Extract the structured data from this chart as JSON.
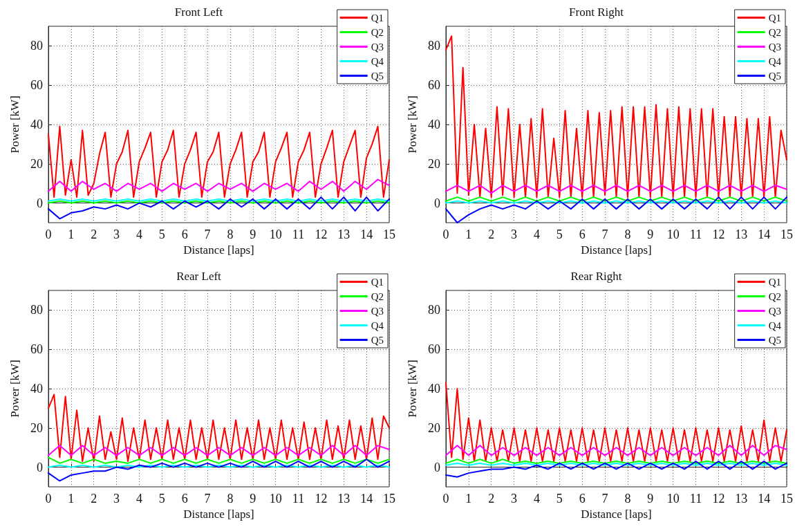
{
  "chart_data": [
    {
      "type": "line",
      "title": "Front Left",
      "xlabel": "Distance [laps]",
      "ylabel": "Power [kW]",
      "xlim": [
        0,
        15
      ],
      "xticks": [
        0,
        1,
        2,
        3,
        4,
        5,
        6,
        7,
        8,
        9,
        10,
        11,
        12,
        13,
        14,
        15
      ],
      "ylim": [
        -10,
        90
      ],
      "yticks": [
        0,
        20,
        40,
        60,
        80
      ],
      "grid": true,
      "legend": "top right",
      "x": [
        0,
        0.25,
        0.5,
        0.75,
        1,
        1.25,
        1.5,
        1.75,
        2,
        2.25,
        2.5,
        2.75,
        3,
        3.25,
        3.5,
        3.75,
        4,
        4.25,
        4.5,
        4.75,
        5,
        5.25,
        5.5,
        5.75,
        6,
        6.25,
        6.5,
        6.75,
        7,
        7.25,
        7.5,
        7.75,
        8,
        8.25,
        8.5,
        8.75,
        9,
        9.25,
        9.5,
        9.75,
        10,
        10.25,
        10.5,
        10.75,
        11,
        11.25,
        11.5,
        11.75,
        12,
        12.25,
        12.5,
        12.75,
        13,
        13.25,
        13.5,
        13.75,
        14,
        14.25,
        14.5,
        14.75,
        15
      ],
      "series": [
        {
          "name": "Q1",
          "color": "#ff0000",
          "values": [
            35,
            3,
            39,
            4,
            22,
            3,
            37,
            4,
            10,
            25,
            36,
            3,
            20,
            26,
            37,
            3,
            21,
            28,
            36,
            3,
            21,
            27,
            37,
            3,
            20,
            27,
            36,
            3,
            21,
            26,
            36,
            3,
            20,
            27,
            36,
            3,
            21,
            26,
            36,
            3,
            21,
            28,
            36,
            3,
            21,
            27,
            36,
            3,
            20,
            28,
            37,
            3,
            21,
            29,
            37,
            3,
            23,
            30,
            39,
            3,
            22
          ]
        },
        {
          "name": "Q2",
          "color": "#00ff00",
          "x": [
            0,
            0.5,
            1,
            1.5,
            2,
            2.5,
            3,
            3.5,
            4,
            4.5,
            5,
            5.5,
            6,
            6.5,
            7,
            7.5,
            8,
            8.5,
            9,
            9.5,
            10,
            10.5,
            11,
            11.5,
            12,
            12.5,
            13,
            13.5,
            14,
            14.5,
            15
          ],
          "values": [
            0,
            1,
            0,
            1,
            0,
            1,
            0,
            1,
            0,
            1,
            0,
            1,
            0,
            1,
            0,
            1,
            0,
            1,
            0,
            1,
            0,
            1,
            0,
            1,
            0,
            1,
            0,
            1,
            0,
            1,
            0
          ]
        },
        {
          "name": "Q3",
          "color": "#ff00ff",
          "x": [
            0,
            0.5,
            1,
            1.5,
            2,
            2.5,
            3,
            3.5,
            4,
            4.5,
            5,
            5.5,
            6,
            6.5,
            7,
            7.5,
            8,
            8.5,
            9,
            9.5,
            10,
            10.5,
            11,
            11.5,
            12,
            12.5,
            13,
            13.5,
            14,
            14.5,
            15
          ],
          "values": [
            6,
            11,
            6,
            11,
            7,
            10,
            6,
            10,
            7,
            10,
            6,
            10,
            7,
            10,
            6,
            10,
            7,
            10,
            6,
            10,
            7,
            10,
            6,
            11,
            7,
            11,
            6,
            11,
            7,
            12,
            9
          ]
        },
        {
          "name": "Q4",
          "color": "#00ffff",
          "x": [
            0,
            0.5,
            1,
            1.5,
            2,
            2.5,
            3,
            3.5,
            4,
            4.5,
            5,
            5.5,
            6,
            6.5,
            7,
            7.5,
            8,
            8.5,
            9,
            9.5,
            10,
            10.5,
            11,
            11.5,
            12,
            12.5,
            13,
            13.5,
            14,
            14.5,
            15
          ],
          "values": [
            1,
            2,
            1,
            2,
            1,
            2,
            1,
            2,
            1,
            2,
            1,
            2,
            1,
            2,
            1,
            2,
            1,
            2,
            1,
            2,
            1,
            2,
            1,
            2,
            1,
            2,
            1,
            2,
            1,
            2,
            1
          ]
        },
        {
          "name": "Q5",
          "color": "#0000ff",
          "x": [
            0,
            0.5,
            1,
            1.5,
            2,
            2.5,
            3,
            3.5,
            4,
            4.5,
            5,
            5.5,
            6,
            6.5,
            7,
            7.5,
            8,
            8.5,
            9,
            9.5,
            10,
            10.5,
            11,
            11.5,
            12,
            12.5,
            13,
            13.5,
            14,
            14.5,
            15
          ],
          "values": [
            -3,
            -8,
            -5,
            -4,
            -2,
            -3,
            -1,
            -3,
            0,
            -2,
            1,
            -3,
            1,
            -2,
            1,
            -3,
            2,
            -2,
            2,
            -3,
            2,
            -3,
            2,
            -3,
            3,
            -3,
            3,
            -4,
            3,
            -4,
            2
          ]
        }
      ]
    },
    {
      "type": "line",
      "title": "Front Right",
      "xlabel": "Distance [laps]",
      "ylabel": "Power [kW]",
      "xlim": [
        0,
        15
      ],
      "xticks": [
        0,
        1,
        2,
        3,
        4,
        5,
        6,
        7,
        8,
        9,
        10,
        11,
        12,
        13,
        14,
        15
      ],
      "ylim": [
        -10,
        90
      ],
      "yticks": [
        0,
        20,
        40,
        60,
        80
      ],
      "grid": true,
      "legend": "top right",
      "x": [
        0,
        0.25,
        0.5,
        0.75,
        1,
        1.25,
        1.5,
        1.75,
        2,
        2.25,
        2.5,
        2.75,
        3,
        3.25,
        3.5,
        3.75,
        4,
        4.25,
        4.5,
        4.75,
        5,
        5.25,
        5.5,
        5.75,
        6,
        6.25,
        6.5,
        6.75,
        7,
        7.25,
        7.5,
        7.75,
        8,
        8.25,
        8.5,
        8.75,
        9,
        9.25,
        9.5,
        9.75,
        10,
        10.25,
        10.5,
        10.75,
        11,
        11.25,
        11.5,
        11.75,
        12,
        12.25,
        12.5,
        12.75,
        13,
        13.25,
        13.5,
        13.75,
        14,
        14.25,
        14.5,
        14.75,
        15
      ],
      "series": [
        {
          "name": "Q1",
          "color": "#ff0000",
          "values": [
            78,
            85,
            5,
            69,
            4,
            40,
            3,
            38,
            3,
            49,
            4,
            48,
            3,
            40,
            3,
            43,
            3,
            48,
            3,
            33,
            3,
            47,
            3,
            38,
            3,
            47,
            3,
            46,
            4,
            47,
            3,
            49,
            3,
            49,
            3,
            49,
            3,
            50,
            3,
            48,
            3,
            49,
            3,
            48,
            3,
            48,
            3,
            48,
            3,
            44,
            3,
            44,
            3,
            43,
            3,
            43,
            3,
            44,
            3,
            37,
            22
          ]
        },
        {
          "name": "Q2",
          "color": "#00ff00",
          "x": [
            0,
            0.5,
            1,
            1.5,
            2,
            2.5,
            3,
            3.5,
            4,
            4.5,
            5,
            5.5,
            6,
            6.5,
            7,
            7.5,
            8,
            8.5,
            9,
            9.5,
            10,
            10.5,
            11,
            11.5,
            12,
            12.5,
            13,
            13.5,
            14,
            14.5,
            15
          ],
          "values": [
            1,
            3,
            1,
            3,
            1,
            3,
            1,
            3,
            1,
            3,
            1,
            3,
            1,
            3,
            1,
            3,
            1,
            3,
            1,
            3,
            1,
            3,
            1,
            3,
            1,
            3,
            1,
            3,
            1,
            3,
            1
          ]
        },
        {
          "name": "Q3",
          "color": "#ff00ff",
          "x": [
            0,
            0.5,
            1,
            1.5,
            2,
            2.5,
            3,
            3.5,
            4,
            4.5,
            5,
            5.5,
            6,
            6.5,
            7,
            7.5,
            8,
            8.5,
            9,
            9.5,
            10,
            10.5,
            11,
            11.5,
            12,
            12.5,
            13,
            13.5,
            14,
            14.5,
            15
          ],
          "values": [
            6,
            9,
            6,
            9,
            5,
            9,
            6,
            9,
            6,
            9,
            6,
            9,
            6,
            9,
            6,
            9,
            6,
            9,
            6,
            9,
            6,
            9,
            6,
            9,
            6,
            9,
            6,
            9,
            6,
            9,
            7
          ]
        },
        {
          "name": "Q4",
          "color": "#00ffff",
          "x": [
            0,
            0.5,
            1,
            1.5,
            2,
            2.5,
            3,
            3.5,
            4,
            4.5,
            5,
            5.5,
            6,
            6.5,
            7,
            7.5,
            8,
            8.5,
            9,
            9.5,
            10,
            10.5,
            11,
            11.5,
            12,
            12.5,
            13,
            13.5,
            14,
            14.5,
            15
          ],
          "values": [
            0,
            1,
            0,
            1,
            0,
            1,
            0,
            1,
            0,
            1,
            0,
            1,
            0,
            1,
            0,
            1,
            0,
            1,
            0,
            1,
            0,
            1,
            0,
            1,
            0,
            1,
            0,
            1,
            0,
            1,
            0
          ]
        },
        {
          "name": "Q5",
          "color": "#0000ff",
          "x": [
            0,
            0.5,
            1,
            1.5,
            2,
            2.5,
            3,
            3.5,
            4,
            4.5,
            5,
            5.5,
            6,
            6.5,
            7,
            7.5,
            8,
            8.5,
            9,
            9.5,
            10,
            10.5,
            11,
            11.5,
            12,
            12.5,
            13,
            13.5,
            14,
            14.5,
            15
          ],
          "values": [
            -3,
            -10,
            -6,
            -3,
            -1,
            -3,
            -1,
            -3,
            1,
            -3,
            1,
            -3,
            2,
            -3,
            2,
            -3,
            2,
            -3,
            2,
            -3,
            2,
            -3,
            2,
            -3,
            3,
            -3,
            3,
            -3,
            3,
            -3,
            3
          ]
        }
      ]
    },
    {
      "type": "line",
      "title": "Rear Left",
      "xlabel": "Distance [laps]",
      "ylabel": "Power [kW]",
      "xlim": [
        0,
        15
      ],
      "xticks": [
        0,
        1,
        2,
        3,
        4,
        5,
        6,
        7,
        8,
        9,
        10,
        11,
        12,
        13,
        14,
        15
      ],
      "ylim": [
        -10,
        90
      ],
      "yticks": [
        0,
        20,
        40,
        60,
        80
      ],
      "grid": true,
      "legend": "top right",
      "x": [
        0,
        0.25,
        0.5,
        0.75,
        1,
        1.25,
        1.5,
        1.75,
        2,
        2.25,
        2.5,
        2.75,
        3,
        3.25,
        3.5,
        3.75,
        4,
        4.25,
        4.5,
        4.75,
        5,
        5.25,
        5.5,
        5.75,
        6,
        6.25,
        6.5,
        6.75,
        7,
        7.25,
        7.5,
        7.75,
        8,
        8.25,
        8.5,
        8.75,
        9,
        9.25,
        9.5,
        9.75,
        10,
        10.25,
        10.5,
        10.75,
        11,
        11.25,
        11.5,
        11.75,
        12,
        12.25,
        12.5,
        12.75,
        13,
        13.25,
        13.5,
        13.75,
        14,
        14.25,
        14.5,
        14.75,
        15
      ],
      "series": [
        {
          "name": "Q1",
          "color": "#ff0000",
          "values": [
            30,
            37,
            5,
            36,
            4,
            29,
            3,
            20,
            3,
            26,
            4,
            18,
            4,
            25,
            3,
            20,
            4,
            24,
            4,
            20,
            4,
            24,
            4,
            20,
            4,
            24,
            4,
            20,
            4,
            24,
            4,
            20,
            4,
            24,
            4,
            20,
            4,
            24,
            4,
            20,
            4,
            24,
            4,
            20,
            4,
            23,
            4,
            20,
            4,
            24,
            4,
            21,
            4,
            24,
            4,
            21,
            4,
            25,
            4,
            26,
            20
          ]
        },
        {
          "name": "Q2",
          "color": "#00ff00",
          "x": [
            0,
            0.5,
            1,
            1.5,
            2,
            2.5,
            3,
            3.5,
            4,
            4.5,
            5,
            5.5,
            6,
            6.5,
            7,
            7.5,
            8,
            8.5,
            9,
            9.5,
            10,
            10.5,
            11,
            11.5,
            12,
            12.5,
            13,
            13.5,
            14,
            14.5,
            15
          ],
          "values": [
            5,
            2,
            4,
            2,
            4,
            2,
            3,
            2,
            4,
            2,
            4,
            2,
            4,
            2,
            4,
            2,
            4,
            2,
            4,
            2,
            4,
            2,
            4,
            2,
            4,
            2,
            4,
            2,
            4,
            2,
            4
          ]
        },
        {
          "name": "Q3",
          "color": "#ff00ff",
          "x": [
            0,
            0.5,
            1,
            1.5,
            2,
            2.5,
            3,
            3.5,
            4,
            4.5,
            5,
            5.5,
            6,
            6.5,
            7,
            7.5,
            8,
            8.5,
            9,
            9.5,
            10,
            10.5,
            11,
            11.5,
            12,
            12.5,
            13,
            13.5,
            14,
            14.5,
            15
          ],
          "values": [
            6,
            11,
            6,
            11,
            6,
            10,
            6,
            10,
            6,
            10,
            6,
            10,
            6,
            10,
            6,
            10,
            6,
            10,
            6,
            10,
            6,
            10,
            6,
            10,
            6,
            11,
            6,
            11,
            6,
            11,
            9
          ]
        },
        {
          "name": "Q4",
          "color": "#00ffff",
          "x": [
            0,
            0.5,
            1,
            1.5,
            2,
            2.5,
            3,
            3.5,
            4,
            4.5,
            5,
            5.5,
            6,
            6.5,
            7,
            7.5,
            8,
            8.5,
            9,
            9.5,
            10,
            10.5,
            11,
            11.5,
            12,
            12.5,
            13,
            13.5,
            14,
            14.5,
            15
          ],
          "values": [
            0,
            1,
            0,
            1,
            0,
            1,
            0,
            1,
            0,
            1,
            0,
            1,
            0,
            1,
            0,
            1,
            0,
            1,
            0,
            1,
            0,
            1,
            0,
            1,
            0,
            1,
            0,
            1,
            0,
            1,
            0
          ]
        },
        {
          "name": "Q5",
          "color": "#0000ff",
          "x": [
            0,
            0.5,
            1,
            1.5,
            2,
            2.5,
            3,
            3.5,
            4,
            4.5,
            5,
            5.5,
            6,
            6.5,
            7,
            7.5,
            8,
            8.5,
            9,
            9.5,
            10,
            10.5,
            11,
            11.5,
            12,
            12.5,
            13,
            13.5,
            14,
            14.5,
            15
          ],
          "values": [
            -3,
            -7,
            -4,
            -3,
            -2,
            -2,
            0,
            -1,
            1,
            0,
            2,
            0,
            2,
            0,
            2,
            0,
            2,
            0,
            3,
            0,
            3,
            0,
            3,
            0,
            3,
            0,
            3,
            0,
            4,
            0,
            3
          ]
        }
      ]
    },
    {
      "type": "line",
      "title": "Rear Right",
      "xlabel": "Distance [laps]",
      "ylabel": "Power [kW]",
      "xlim": [
        0,
        15
      ],
      "xticks": [
        0,
        1,
        2,
        3,
        4,
        5,
        6,
        7,
        8,
        9,
        10,
        11,
        12,
        13,
        14,
        15
      ],
      "ylim": [
        -10,
        90
      ],
      "yticks": [
        0,
        20,
        40,
        60,
        80
      ],
      "grid": true,
      "legend": "top right",
      "x": [
        0,
        0.25,
        0.5,
        0.75,
        1,
        1.25,
        1.5,
        1.75,
        2,
        2.25,
        2.5,
        2.75,
        3,
        3.25,
        3.5,
        3.75,
        4,
        4.25,
        4.5,
        4.75,
        5,
        5.25,
        5.5,
        5.75,
        6,
        6.25,
        6.5,
        6.75,
        7,
        7.25,
        7.5,
        7.75,
        8,
        8.25,
        8.5,
        8.75,
        9,
        9.25,
        9.5,
        9.75,
        10,
        10.25,
        10.5,
        10.75,
        11,
        11.25,
        11.5,
        11.75,
        12,
        12.25,
        12.5,
        12.75,
        13,
        13.25,
        13.5,
        13.75,
        14,
        14.25,
        14.5,
        14.75,
        15
      ],
      "series": [
        {
          "name": "Q1",
          "color": "#ff0000",
          "values": [
            43,
            5,
            40,
            4,
            25,
            3,
            24,
            3,
            20,
            3,
            19,
            3,
            20,
            3,
            19,
            3,
            20,
            3,
            19,
            3,
            20,
            3,
            19,
            3,
            20,
            3,
            19,
            3,
            20,
            3,
            19,
            3,
            20,
            3,
            19,
            3,
            20,
            3,
            19,
            3,
            20,
            3,
            19,
            3,
            20,
            3,
            19,
            3,
            20,
            3,
            19,
            3,
            21,
            3,
            19,
            3,
            24,
            3,
            20,
            3,
            19
          ]
        },
        {
          "name": "Q2",
          "color": "#00ff00",
          "x": [
            0,
            0.5,
            1,
            1.5,
            2,
            2.5,
            3,
            3.5,
            4,
            4.5,
            5,
            5.5,
            6,
            6.5,
            7,
            7.5,
            8,
            8.5,
            9,
            9.5,
            10,
            10.5,
            11,
            11.5,
            12,
            12.5,
            13,
            13.5,
            14,
            14.5,
            15
          ],
          "values": [
            2,
            4,
            2,
            4,
            2,
            4,
            2,
            3,
            2,
            3,
            2,
            3,
            2,
            3,
            2,
            3,
            2,
            3,
            2,
            3,
            2,
            3,
            2,
            3,
            2,
            3,
            2,
            3,
            2,
            3,
            2
          ]
        },
        {
          "name": "Q3",
          "color": "#ff00ff",
          "x": [
            0,
            0.5,
            1,
            1.5,
            2,
            2.5,
            3,
            3.5,
            4,
            4.5,
            5,
            5.5,
            6,
            6.5,
            7,
            7.5,
            8,
            8.5,
            9,
            9.5,
            10,
            10.5,
            11,
            11.5,
            12,
            12.5,
            13,
            13.5,
            14,
            14.5,
            15
          ],
          "values": [
            6,
            11,
            6,
            11,
            6,
            10,
            6,
            10,
            6,
            10,
            6,
            10,
            6,
            10,
            6,
            10,
            6,
            10,
            6,
            10,
            6,
            10,
            6,
            10,
            6,
            11,
            6,
            11,
            6,
            11,
            9
          ]
        },
        {
          "name": "Q4",
          "color": "#00ffff",
          "x": [
            0,
            0.5,
            1,
            1.5,
            2,
            2.5,
            3,
            3.5,
            4,
            4.5,
            5,
            5.5,
            6,
            6.5,
            7,
            7.5,
            8,
            8.5,
            9,
            9.5,
            10,
            10.5,
            11,
            11.5,
            12,
            12.5,
            13,
            13.5,
            14,
            14.5,
            15
          ],
          "values": [
            1,
            2,
            1,
            2,
            1,
            2,
            1,
            2,
            1,
            2,
            1,
            2,
            1,
            2,
            1,
            2,
            1,
            2,
            1,
            2,
            1,
            2,
            1,
            2,
            1,
            2,
            1,
            2,
            1,
            2,
            1
          ]
        },
        {
          "name": "Q5",
          "color": "#0000ff",
          "x": [
            0,
            0.5,
            1,
            1.5,
            2,
            2.5,
            3,
            3.5,
            4,
            4.5,
            5,
            5.5,
            6,
            6.5,
            7,
            7.5,
            8,
            8.5,
            9,
            9.5,
            10,
            10.5,
            11,
            11.5,
            12,
            12.5,
            13,
            13.5,
            14,
            14.5,
            15
          ],
          "values": [
            -4,
            -5,
            -3,
            -2,
            -1,
            -1,
            0,
            -1,
            1,
            -1,
            2,
            -1,
            2,
            -1,
            2,
            -1,
            2,
            -1,
            2,
            -1,
            2,
            -1,
            3,
            -1,
            3,
            -1,
            3,
            -1,
            3,
            -1,
            2
          ]
        }
      ]
    }
  ]
}
